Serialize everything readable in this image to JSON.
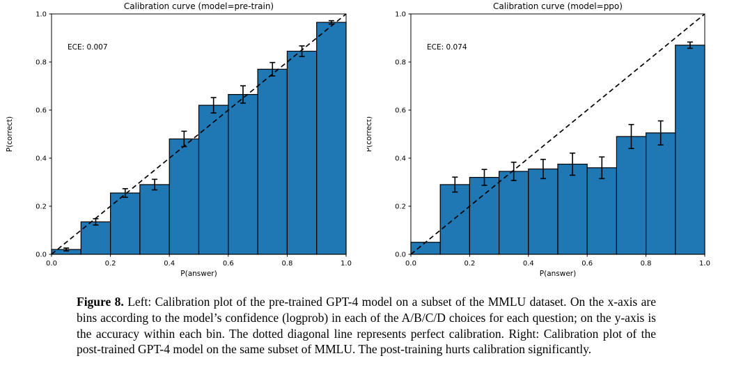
{
  "caption": {
    "label": "Figure 8.",
    "text": "Left: Calibration plot of the pre-trained GPT-4 model on a subset of the MMLU dataset. On the x-axis are bins according to the model’s confidence (logprob) in each of the A/B/C/D choices for each question; on the y-axis is the accuracy within each bin. The dotted diagonal line represents perfect calibration. Right: Calibration plot of the post-trained GPT-4 model on the same subset of MMLU. The post-training hurts calibration significantly."
  },
  "colors": {
    "bar_fill": "#1f77b4",
    "bar_edge": "#000000",
    "diagonal": "#000000",
    "error_bar": "#000000",
    "text": "#000000"
  },
  "chart_data": [
    {
      "type": "bar",
      "title": "Calibration curve (model=pre-train)",
      "xlabel": "P(answer)",
      "ylabel": "P(correct)",
      "annotation": "ECE: 0.007",
      "xlim": [
        0.0,
        1.0
      ],
      "ylim": [
        0.0,
        1.0
      ],
      "xticks": [
        "0.0",
        "0.2",
        "0.4",
        "0.6",
        "0.8",
        "1.0"
      ],
      "yticks": [
        "0.0",
        "0.2",
        "0.4",
        "0.6",
        "0.8",
        "1.0"
      ],
      "bin_centers": [
        0.05,
        0.15,
        0.25,
        0.35,
        0.45,
        0.55,
        0.65,
        0.75,
        0.85,
        0.95
      ],
      "bar_width": 0.1,
      "values": [
        0.02,
        0.135,
        0.255,
        0.29,
        0.48,
        0.62,
        0.665,
        0.77,
        0.845,
        0.965
      ],
      "errors": [
        0.006,
        0.013,
        0.018,
        0.022,
        0.032,
        0.032,
        0.036,
        0.028,
        0.022,
        0.007
      ],
      "diagonal": true,
      "grid": false,
      "legend": null
    },
    {
      "type": "bar",
      "title": "Calibration curve (model=ppo)",
      "xlabel": "P(answer)",
      "ylabel": "P(correct)",
      "annotation": "ECE: 0.074",
      "xlim": [
        0.0,
        1.0
      ],
      "ylim": [
        0.0,
        1.0
      ],
      "xticks": [
        "0.0",
        "0.2",
        "0.4",
        "0.6",
        "0.8",
        "1.0"
      ],
      "yticks": [
        "0.0",
        "0.2",
        "0.4",
        "0.6",
        "0.8",
        "1.0"
      ],
      "bin_centers": [
        0.05,
        0.15,
        0.25,
        0.35,
        0.45,
        0.55,
        0.65,
        0.75,
        0.85,
        0.95
      ],
      "bar_width": 0.1,
      "values": [
        0.05,
        0.29,
        0.32,
        0.345,
        0.355,
        0.375,
        0.36,
        0.49,
        0.505,
        0.87
      ],
      "errors": [
        0,
        0.031,
        0.033,
        0.038,
        0.04,
        0.046,
        0.045,
        0.05,
        0.05,
        0.013
      ],
      "diagonal": true,
      "grid": false,
      "legend": null
    }
  ]
}
